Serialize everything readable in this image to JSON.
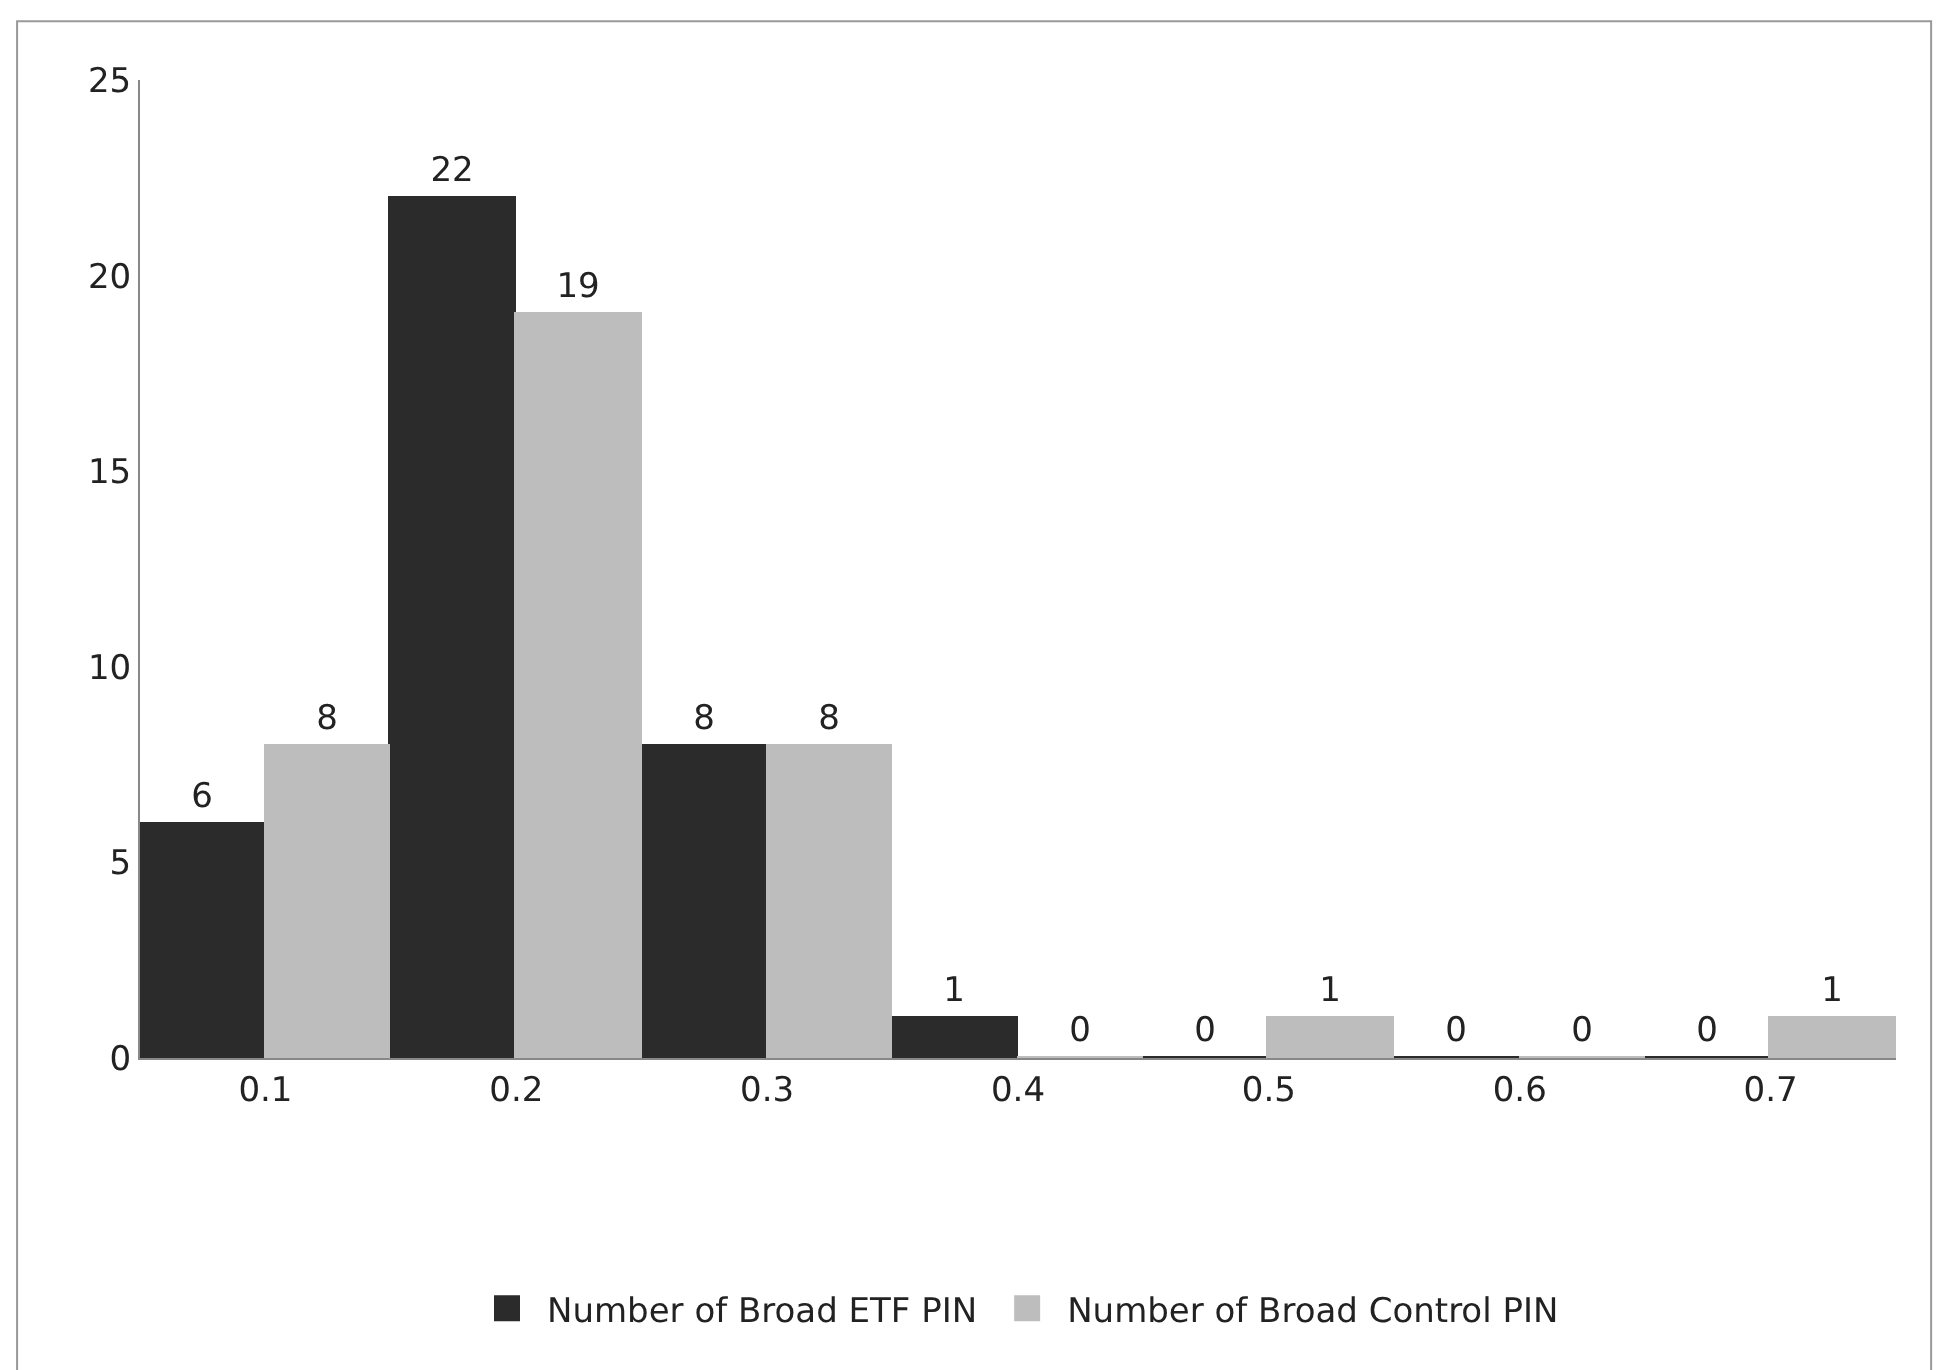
{
  "chart_data": {
    "type": "bar",
    "categories": [
      "0.1",
      "0.2",
      "0.3",
      "0.4",
      "0.5",
      "0.6",
      "0.7"
    ],
    "series": [
      {
        "name": "Number of Broad ETF PIN",
        "color": "#2b2b2b",
        "values": [
          6,
          22,
          8,
          1,
          0,
          0,
          0
        ]
      },
      {
        "name": "Number of Broad Control PIN",
        "color": "#bdbdbd",
        "values": [
          8,
          19,
          8,
          0,
          1,
          0,
          1
        ]
      }
    ],
    "ylim": [
      0,
      25
    ],
    "yticks": [
      0,
      5,
      10,
      15,
      20,
      25
    ],
    "data_labels": true,
    "legend": "bottom"
  }
}
